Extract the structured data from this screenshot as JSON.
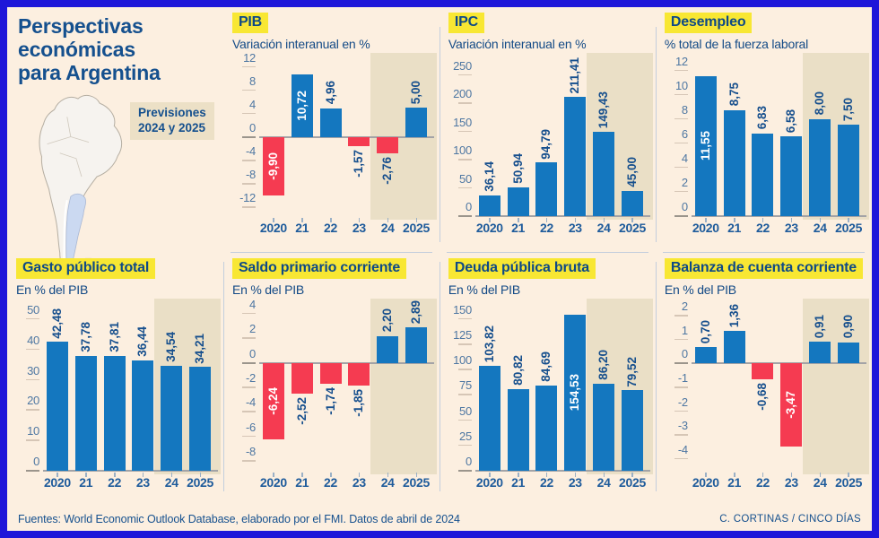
{
  "header": {
    "title": "Perspectivas económicas para Argentina",
    "forecast_note": "Previsiones 2024 y 2025"
  },
  "footer": {
    "sources": "Fuentes: World Economic Outlook Database, elaborado por el FMI. Datos de abril de 2024",
    "credit": "C. CORTINAS / CINCO DÍAS"
  },
  "colors": {
    "frame_blue": "#1e16d9",
    "background_cream": "#fcefe0",
    "forecast_tan": "#eadfc6",
    "title_yellow": "#f8e733",
    "bar_blue": "#1477bf",
    "bar_red": "#f53b51",
    "navy_text": "#15508e",
    "argentina_map_fill": "#cbd9f1"
  },
  "years": [
    "2020",
    "21",
    "22",
    "23",
    "24",
    "2025"
  ],
  "chart_data": [
    {
      "id": "pib",
      "type": "bar",
      "title": "PIB",
      "subtitle": "Variación interanual en %",
      "categories": [
        "2020",
        "21",
        "22",
        "23",
        "24",
        "2025"
      ],
      "values": [
        -9.9,
        10.72,
        4.96,
        -1.57,
        -2.76,
        5.0
      ],
      "labels": [
        "-9,90",
        "10,72",
        "4,96",
        "-1,57",
        "-2,76",
        "5,00"
      ],
      "inside": [
        true,
        true,
        false,
        false,
        false,
        false
      ],
      "yticks": [
        12,
        8,
        4,
        0,
        -4,
        -8,
        -12
      ],
      "ylim": [
        -13.5,
        13.5
      ],
      "forecast_cols": [
        4,
        5
      ],
      "legend": "none",
      "grid": "off"
    },
    {
      "id": "ipc",
      "type": "bar",
      "title": "IPC",
      "subtitle": "Variación interanual en %",
      "categories": [
        "2020",
        "21",
        "22",
        "23",
        "24",
        "2025"
      ],
      "values": [
        36.14,
        50.94,
        94.79,
        211.41,
        149.43,
        45.0
      ],
      "labels": [
        "36,14",
        "50,94",
        "94,79",
        "211,41",
        "149,43",
        "45,00"
      ],
      "inside": [
        false,
        false,
        false,
        false,
        false,
        false
      ],
      "yticks": [
        250,
        200,
        150,
        100,
        50,
        0
      ],
      "ylim": [
        0,
        280
      ],
      "forecast_cols": [
        4,
        5
      ],
      "legend": "none",
      "grid": "off"
    },
    {
      "id": "desempleo",
      "type": "bar",
      "title": "Desempleo",
      "subtitle": "% total de la fuerza laboral",
      "categories": [
        "2020",
        "21",
        "22",
        "23",
        "24",
        "2025"
      ],
      "values": [
        11.55,
        8.75,
        6.83,
        6.58,
        8.0,
        7.5
      ],
      "labels": [
        "11,55",
        "8,75",
        "6,83",
        "6,58",
        "8,00",
        "7,50"
      ],
      "inside": [
        true,
        false,
        false,
        false,
        false,
        false
      ],
      "yticks": [
        12,
        10,
        8,
        6,
        4,
        2,
        0
      ],
      "ylim": [
        0,
        13
      ],
      "forecast_cols": [
        4,
        5
      ],
      "legend": "none",
      "grid": "off"
    },
    {
      "id": "gasto",
      "type": "bar",
      "title": "Gasto público total",
      "subtitle": "En % del PIB",
      "categories": [
        "2020",
        "21",
        "22",
        "23",
        "24",
        "2025"
      ],
      "values": [
        42.48,
        37.78,
        37.81,
        36.44,
        34.54,
        34.21
      ],
      "labels": [
        "42,48",
        "37,78",
        "37,81",
        "36,44",
        "34,54",
        "34,21"
      ],
      "inside": [
        false,
        false,
        false,
        false,
        false,
        false
      ],
      "yticks": [
        50,
        40,
        30,
        20,
        10,
        0
      ],
      "ylim": [
        0,
        55
      ],
      "forecast_cols": [
        4,
        5
      ],
      "legend": "none",
      "grid": "off"
    },
    {
      "id": "saldo",
      "type": "bar",
      "title": "Saldo primario corriente",
      "subtitle": "En % del PIB",
      "categories": [
        "2020",
        "21",
        "22",
        "23",
        "24",
        "2025"
      ],
      "values": [
        -6.24,
        -2.52,
        -1.74,
        -1.85,
        2.2,
        2.89
      ],
      "labels": [
        "-6,24",
        "-2,52",
        "-1,74",
        "-1,85",
        "2,20",
        "2,89"
      ],
      "inside": [
        true,
        false,
        false,
        false,
        false,
        false
      ],
      "yticks": [
        4,
        2,
        0,
        -2,
        -4,
        -6,
        -8
      ],
      "ylim": [
        -8.8,
        4.8
      ],
      "forecast_cols": [
        4,
        5
      ],
      "legend": "none",
      "grid": "off"
    },
    {
      "id": "deuda",
      "type": "bar",
      "title": "Deuda pública bruta",
      "subtitle": "En % del PIB",
      "categories": [
        "2020",
        "21",
        "22",
        "23",
        "24",
        "2025"
      ],
      "values": [
        103.82,
        80.82,
        84.69,
        154.53,
        86.2,
        79.52
      ],
      "labels": [
        "103,82",
        "80,82",
        "84,69",
        "154,53",
        "86,20",
        "79,52"
      ],
      "inside": [
        false,
        false,
        false,
        true,
        false,
        false
      ],
      "yticks": [
        150,
        125,
        100,
        75,
        50,
        25,
        0
      ],
      "ylim": [
        0,
        165
      ],
      "forecast_cols": [
        4,
        5
      ],
      "legend": "none",
      "grid": "off"
    },
    {
      "id": "balanza",
      "type": "bar",
      "title": "Balanza de cuenta corriente",
      "subtitle": "En % del PIB",
      "categories": [
        "2020",
        "21",
        "22",
        "23",
        "24",
        "2025"
      ],
      "values": [
        0.7,
        1.36,
        -0.68,
        -3.47,
        0.91,
        0.9
      ],
      "labels": [
        "0,70",
        "1,36",
        "-0,68",
        "-3,47",
        "0,91",
        "0,90"
      ],
      "inside": [
        false,
        false,
        false,
        true,
        false,
        false
      ],
      "yticks": [
        2,
        1,
        0,
        -1,
        -2,
        -3,
        -4
      ],
      "ylim": [
        -4.5,
        2.5
      ],
      "forecast_cols": [
        4,
        5
      ],
      "legend": "none",
      "grid": "off"
    }
  ]
}
